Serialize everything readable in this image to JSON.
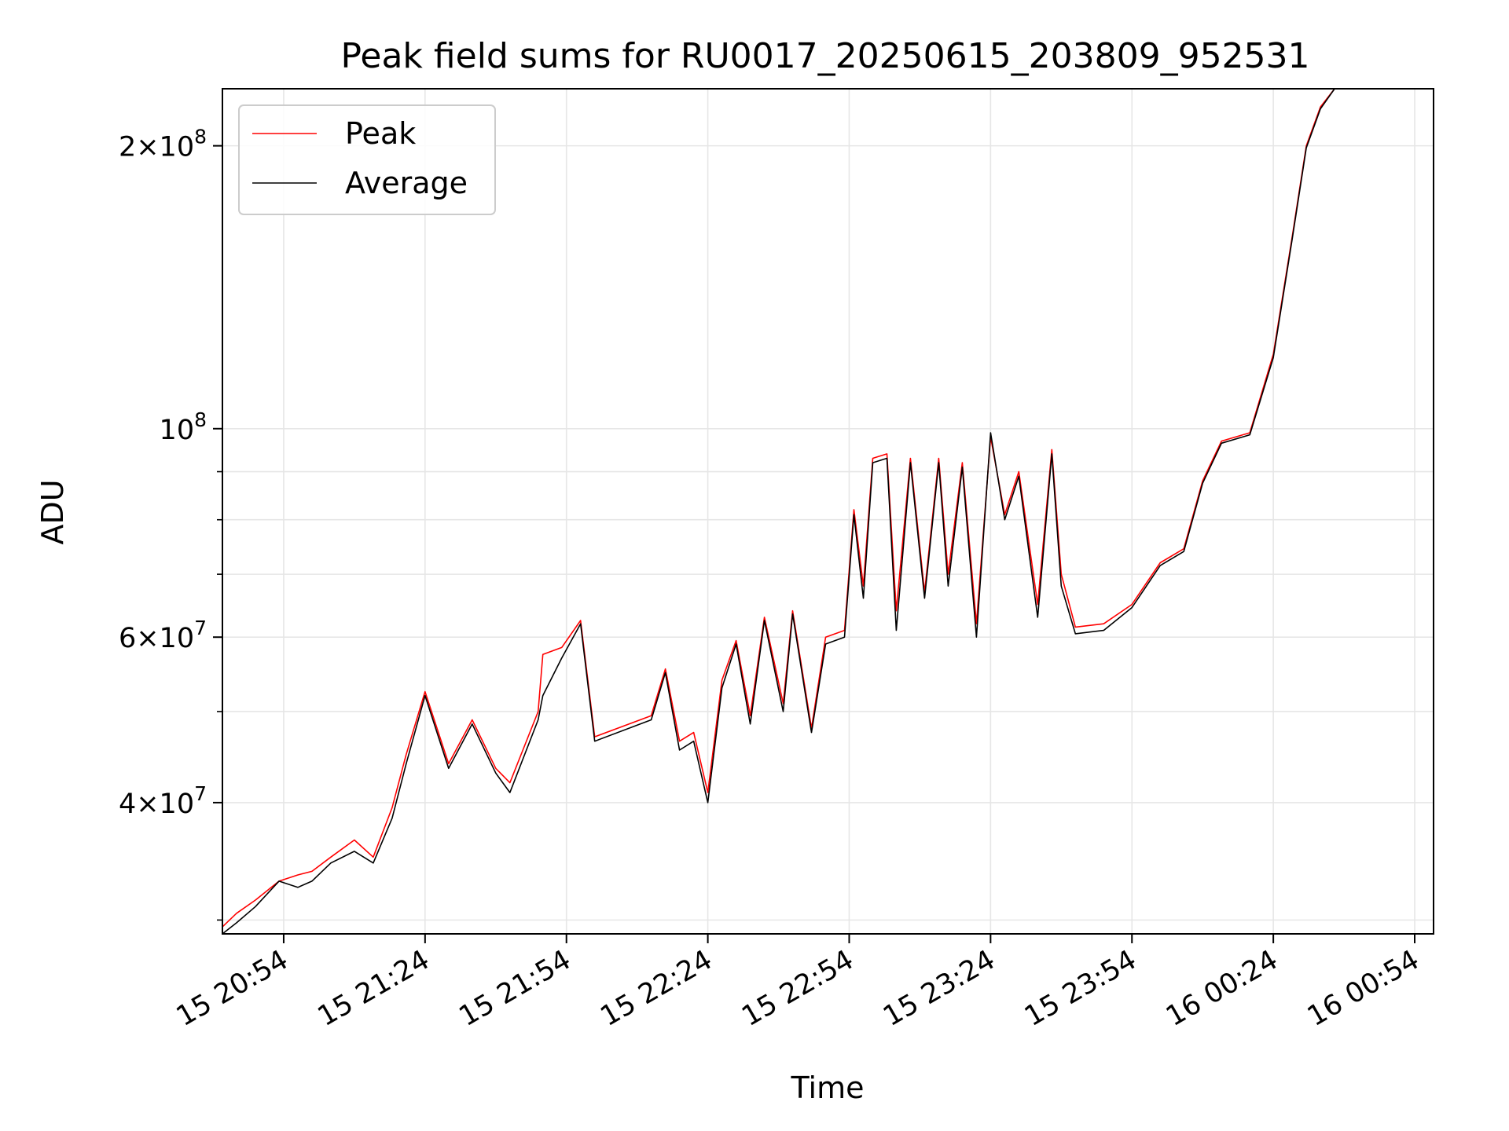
{
  "chart_data": {
    "type": "line",
    "title": "Peak field sums for RU0017_20250615_203809_952531",
    "xlabel": "Time",
    "ylabel": "ADU",
    "yscale": "log",
    "ylim": [
      29000000,
      230000000
    ],
    "xlim": [
      "2025-06-15 20:41",
      "2025-06-16 00:58"
    ],
    "grid": true,
    "legend": "top-left",
    "x_ticks": [
      {
        "value": "2025-06-15 20:54",
        "label": "15 20:54"
      },
      {
        "value": "2025-06-15 21:24",
        "label": "15 21:24"
      },
      {
        "value": "2025-06-15 21:54",
        "label": "15 21:54"
      },
      {
        "value": "2025-06-15 22:24",
        "label": "15 22:24"
      },
      {
        "value": "2025-06-15 22:54",
        "label": "15 22:54"
      },
      {
        "value": "2025-06-15 23:24",
        "label": "15 23:24"
      },
      {
        "value": "2025-06-15 23:54",
        "label": "15 23:54"
      },
      {
        "value": "2025-06-16 00:24",
        "label": "16 00:24"
      },
      {
        "value": "2025-06-16 00:54",
        "label": "16 00:54"
      }
    ],
    "y_ticks": [
      {
        "value": 40000000,
        "base": "4",
        "exp": "7"
      },
      {
        "value": 60000000,
        "base": "6",
        "exp": "7"
      },
      {
        "value": 100000000,
        "base": "",
        "exp": "8"
      },
      {
        "value": 200000000,
        "base": "2",
        "exp": "8"
      }
    ],
    "y_minor_ticks": [
      30000000,
      50000000,
      70000000,
      80000000,
      90000000
    ],
    "series": [
      {
        "name": "Peak",
        "color": "#ff0000",
        "points": [
          [
            "2025-06-15 20:41",
            29500000
          ],
          [
            "2025-06-15 20:44",
            30500000
          ],
          [
            "2025-06-15 20:48",
            31500000
          ],
          [
            "2025-06-15 20:53",
            33000000
          ],
          [
            "2025-06-15 20:57",
            33500000
          ],
          [
            "2025-06-15 21:00",
            33800000
          ],
          [
            "2025-06-15 21:04",
            35000000
          ],
          [
            "2025-06-15 21:09",
            36500000
          ],
          [
            "2025-06-15 21:13",
            35000000
          ],
          [
            "2025-06-15 21:17",
            39500000
          ],
          [
            "2025-06-15 21:20",
            45000000
          ],
          [
            "2025-06-15 21:24",
            52500000
          ],
          [
            "2025-06-15 21:29",
            44000000
          ],
          [
            "2025-06-15 21:34",
            49000000
          ],
          [
            "2025-06-15 21:39",
            43500000
          ],
          [
            "2025-06-15 21:42",
            42000000
          ],
          [
            "2025-06-15 21:48",
            50000000
          ],
          [
            "2025-06-15 21:49",
            57500000
          ],
          [
            "2025-06-15 21:53",
            58500000
          ],
          [
            "2025-06-15 21:57",
            62500000
          ],
          [
            "2025-06-15 22:00",
            47000000
          ],
          [
            "2025-06-15 22:12",
            49500000
          ],
          [
            "2025-06-15 22:15",
            55500000
          ],
          [
            "2025-06-15 22:18",
            46500000
          ],
          [
            "2025-06-15 22:21",
            47500000
          ],
          [
            "2025-06-15 22:24",
            41000000
          ],
          [
            "2025-06-15 22:27",
            54000000
          ],
          [
            "2025-06-15 22:30",
            59500000
          ],
          [
            "2025-06-15 22:33",
            49500000
          ],
          [
            "2025-06-15 22:36",
            63000000
          ],
          [
            "2025-06-15 22:40",
            51000000
          ],
          [
            "2025-06-15 22:42",
            64000000
          ],
          [
            "2025-06-15 22:46",
            48000000
          ],
          [
            "2025-06-15 22:49",
            60000000
          ],
          [
            "2025-06-15 22:53",
            61000000
          ],
          [
            "2025-06-15 22:55",
            82000000
          ],
          [
            "2025-06-15 22:57",
            68000000
          ],
          [
            "2025-06-15 22:59",
            93000000
          ],
          [
            "2025-06-15 23:02",
            94000000
          ],
          [
            "2025-06-15 23:04",
            64000000
          ],
          [
            "2025-06-15 23:07",
            93000000
          ],
          [
            "2025-06-15 23:10",
            67000000
          ],
          [
            "2025-06-15 23:13",
            93000000
          ],
          [
            "2025-06-15 23:15",
            70000000
          ],
          [
            "2025-06-15 23:18",
            92000000
          ],
          [
            "2025-06-15 23:21",
            62000000
          ],
          [
            "2025-06-15 23:24",
            98000000
          ],
          [
            "2025-06-15 23:27",
            81000000
          ],
          [
            "2025-06-15 23:30",
            90000000
          ],
          [
            "2025-06-15 23:34",
            65000000
          ],
          [
            "2025-06-15 23:37",
            95000000
          ],
          [
            "2025-06-15 23:39",
            70000000
          ],
          [
            "2025-06-15 23:42",
            61500000
          ],
          [
            "2025-06-15 23:48",
            62000000
          ],
          [
            "2025-06-15 23:54",
            65000000
          ],
          [
            "2025-06-16 00:00",
            72000000
          ],
          [
            "2025-06-16 00:05",
            74500000
          ],
          [
            "2025-06-16 00:09",
            88000000
          ],
          [
            "2025-06-16 00:13",
            97000000
          ],
          [
            "2025-06-16 00:19",
            99000000
          ],
          [
            "2025-06-16 00:24",
            120000000
          ],
          [
            "2025-06-16 00:28",
            160000000
          ],
          [
            "2025-06-16 00:31",
            200000000
          ],
          [
            "2025-06-16 00:34",
            220000000
          ],
          [
            "2025-06-16 00:37",
            230000000
          ]
        ]
      },
      {
        "name": "Average",
        "color": "#000000",
        "points": [
          [
            "2025-06-15 20:41",
            29000000
          ],
          [
            "2025-06-15 20:44",
            29800000
          ],
          [
            "2025-06-15 20:48",
            31000000
          ],
          [
            "2025-06-15 20:53",
            33000000
          ],
          [
            "2025-06-15 20:57",
            32500000
          ],
          [
            "2025-06-15 21:00",
            33000000
          ],
          [
            "2025-06-15 21:04",
            34500000
          ],
          [
            "2025-06-15 21:09",
            35500000
          ],
          [
            "2025-06-15 21:13",
            34500000
          ],
          [
            "2025-06-15 21:17",
            38500000
          ],
          [
            "2025-06-15 21:20",
            44000000
          ],
          [
            "2025-06-15 21:24",
            52000000
          ],
          [
            "2025-06-15 21:29",
            43500000
          ],
          [
            "2025-06-15 21:34",
            48500000
          ],
          [
            "2025-06-15 21:39",
            43000000
          ],
          [
            "2025-06-15 21:42",
            41000000
          ],
          [
            "2025-06-15 21:48",
            49000000
          ],
          [
            "2025-06-15 21:49",
            52000000
          ],
          [
            "2025-06-15 21:53",
            57000000
          ],
          [
            "2025-06-15 21:57",
            62000000
          ],
          [
            "2025-06-15 22:00",
            46500000
          ],
          [
            "2025-06-15 22:12",
            49000000
          ],
          [
            "2025-06-15 22:15",
            55000000
          ],
          [
            "2025-06-15 22:18",
            45500000
          ],
          [
            "2025-06-15 22:21",
            46500000
          ],
          [
            "2025-06-15 22:24",
            40000000
          ],
          [
            "2025-06-15 22:27",
            53000000
          ],
          [
            "2025-06-15 22:30",
            59000000
          ],
          [
            "2025-06-15 22:33",
            48500000
          ],
          [
            "2025-06-15 22:36",
            62500000
          ],
          [
            "2025-06-15 22:40",
            50000000
          ],
          [
            "2025-06-15 22:42",
            63500000
          ],
          [
            "2025-06-15 22:46",
            47500000
          ],
          [
            "2025-06-15 22:49",
            59000000
          ],
          [
            "2025-06-15 22:53",
            60000000
          ],
          [
            "2025-06-15 22:55",
            81000000
          ],
          [
            "2025-06-15 22:57",
            66000000
          ],
          [
            "2025-06-15 22:59",
            92000000
          ],
          [
            "2025-06-15 23:02",
            93000000
          ],
          [
            "2025-06-15 23:04",
            61000000
          ],
          [
            "2025-06-15 23:07",
            92000000
          ],
          [
            "2025-06-15 23:10",
            66000000
          ],
          [
            "2025-06-15 23:13",
            92000000
          ],
          [
            "2025-06-15 23:15",
            68000000
          ],
          [
            "2025-06-15 23:18",
            91000000
          ],
          [
            "2025-06-15 23:21",
            60000000
          ],
          [
            "2025-06-15 23:24",
            99000000
          ],
          [
            "2025-06-15 23:27",
            80000000
          ],
          [
            "2025-06-15 23:30",
            89000000
          ],
          [
            "2025-06-15 23:34",
            63000000
          ],
          [
            "2025-06-15 23:37",
            94000000
          ],
          [
            "2025-06-15 23:39",
            68000000
          ],
          [
            "2025-06-15 23:42",
            60500000
          ],
          [
            "2025-06-15 23:48",
            61000000
          ],
          [
            "2025-06-15 23:54",
            64500000
          ],
          [
            "2025-06-16 00:00",
            71500000
          ],
          [
            "2025-06-16 00:05",
            74000000
          ],
          [
            "2025-06-16 00:09",
            87500000
          ],
          [
            "2025-06-16 00:13",
            96500000
          ],
          [
            "2025-06-16 00:19",
            98500000
          ],
          [
            "2025-06-16 00:24",
            119000000
          ],
          [
            "2025-06-16 00:28",
            159000000
          ],
          [
            "2025-06-16 00:31",
            199000000
          ],
          [
            "2025-06-16 00:34",
            219000000
          ],
          [
            "2025-06-16 00:37",
            230000000
          ]
        ]
      }
    ]
  }
}
